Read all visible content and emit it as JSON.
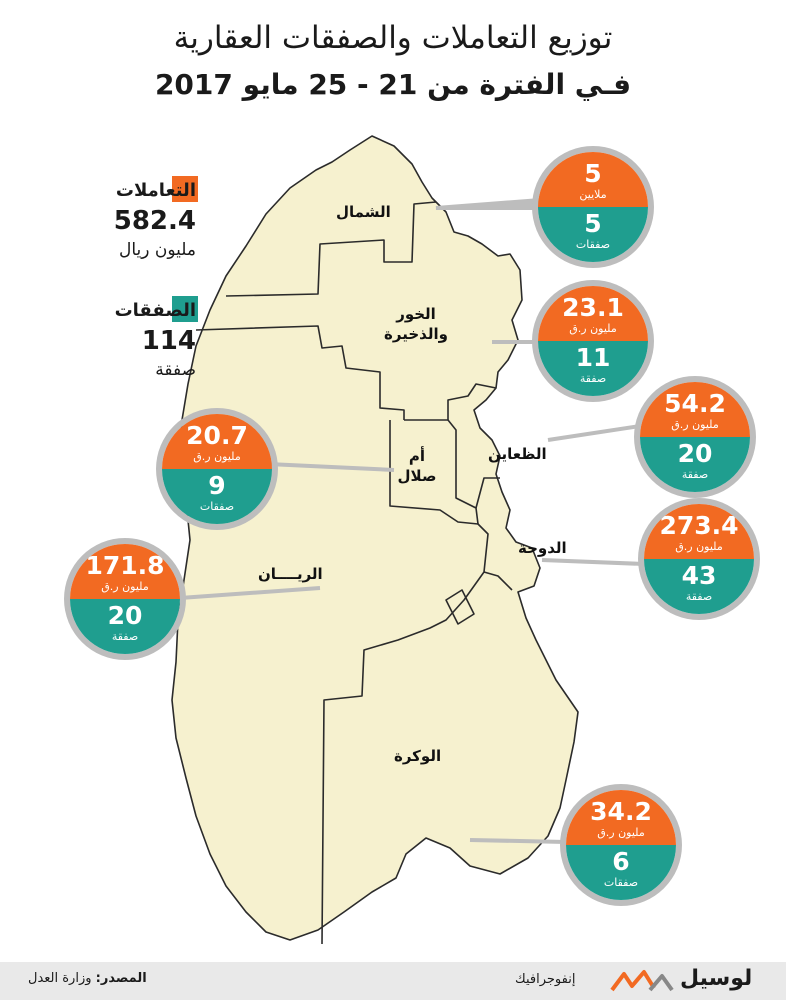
{
  "title": {
    "line1": "توزيع التعاملات والصفقات العقارية",
    "line2": "فـي الفترة من 21 - 25 مايو 2017"
  },
  "colors": {
    "transactions": "#f26a22",
    "deals": "#1f9e8f",
    "land": "#f6f1cf",
    "border": "#2b2b2b",
    "callout": "#bdbdbd"
  },
  "legend": {
    "transactions": {
      "label": "التعاملات",
      "value": "582.4",
      "unit": "مليون ريال"
    },
    "deals": {
      "label": "الصفقات",
      "value": "114",
      "unit": "صفقة"
    }
  },
  "regions": [
    {
      "id": "shamal",
      "name": "الشمال",
      "transactions_value": "5",
      "transactions_unit": "ملايين",
      "deals_value": "5",
      "deals_unit": "صفقات"
    },
    {
      "id": "khor",
      "name": "الخور والذخيرة",
      "name_line1": "الخور",
      "name_line2": "والذخيرة",
      "transactions_value": "23.1",
      "transactions_unit": "مليون ر.ق",
      "deals_value": "11",
      "deals_unit": "صفقة"
    },
    {
      "id": "daayen",
      "name": "الظعاين",
      "transactions_value": "54.2",
      "transactions_unit": "مليون ر.ق",
      "deals_value": "20",
      "deals_unit": "صفقة"
    },
    {
      "id": "ummslal",
      "name": "أم صلال",
      "name_line1": "أم",
      "name_line2": "صلال",
      "transactions_value": "20.7",
      "transactions_unit": "مليون ر.ق",
      "deals_value": "9",
      "deals_unit": "صفقات"
    },
    {
      "id": "doha",
      "name": "الدوحة",
      "transactions_value": "273.4",
      "transactions_unit": "مليون ر.ق",
      "deals_value": "43",
      "deals_unit": "صفقة"
    },
    {
      "id": "rayyan",
      "name": "الريــــان",
      "transactions_value": "171.8",
      "transactions_unit": "مليون ر.ق",
      "deals_value": "20",
      "deals_unit": "صفقة"
    },
    {
      "id": "wakra",
      "name": "الوكرة",
      "transactions_value": "34.2",
      "transactions_unit": "مليون ر.ق",
      "deals_value": "6",
      "deals_unit": "صفقات"
    }
  ],
  "footer": {
    "source_label": "المصدر:",
    "source_value": "وزارة العدل",
    "infographic": "إنفوجرافيك",
    "brand": "لوسيل"
  }
}
